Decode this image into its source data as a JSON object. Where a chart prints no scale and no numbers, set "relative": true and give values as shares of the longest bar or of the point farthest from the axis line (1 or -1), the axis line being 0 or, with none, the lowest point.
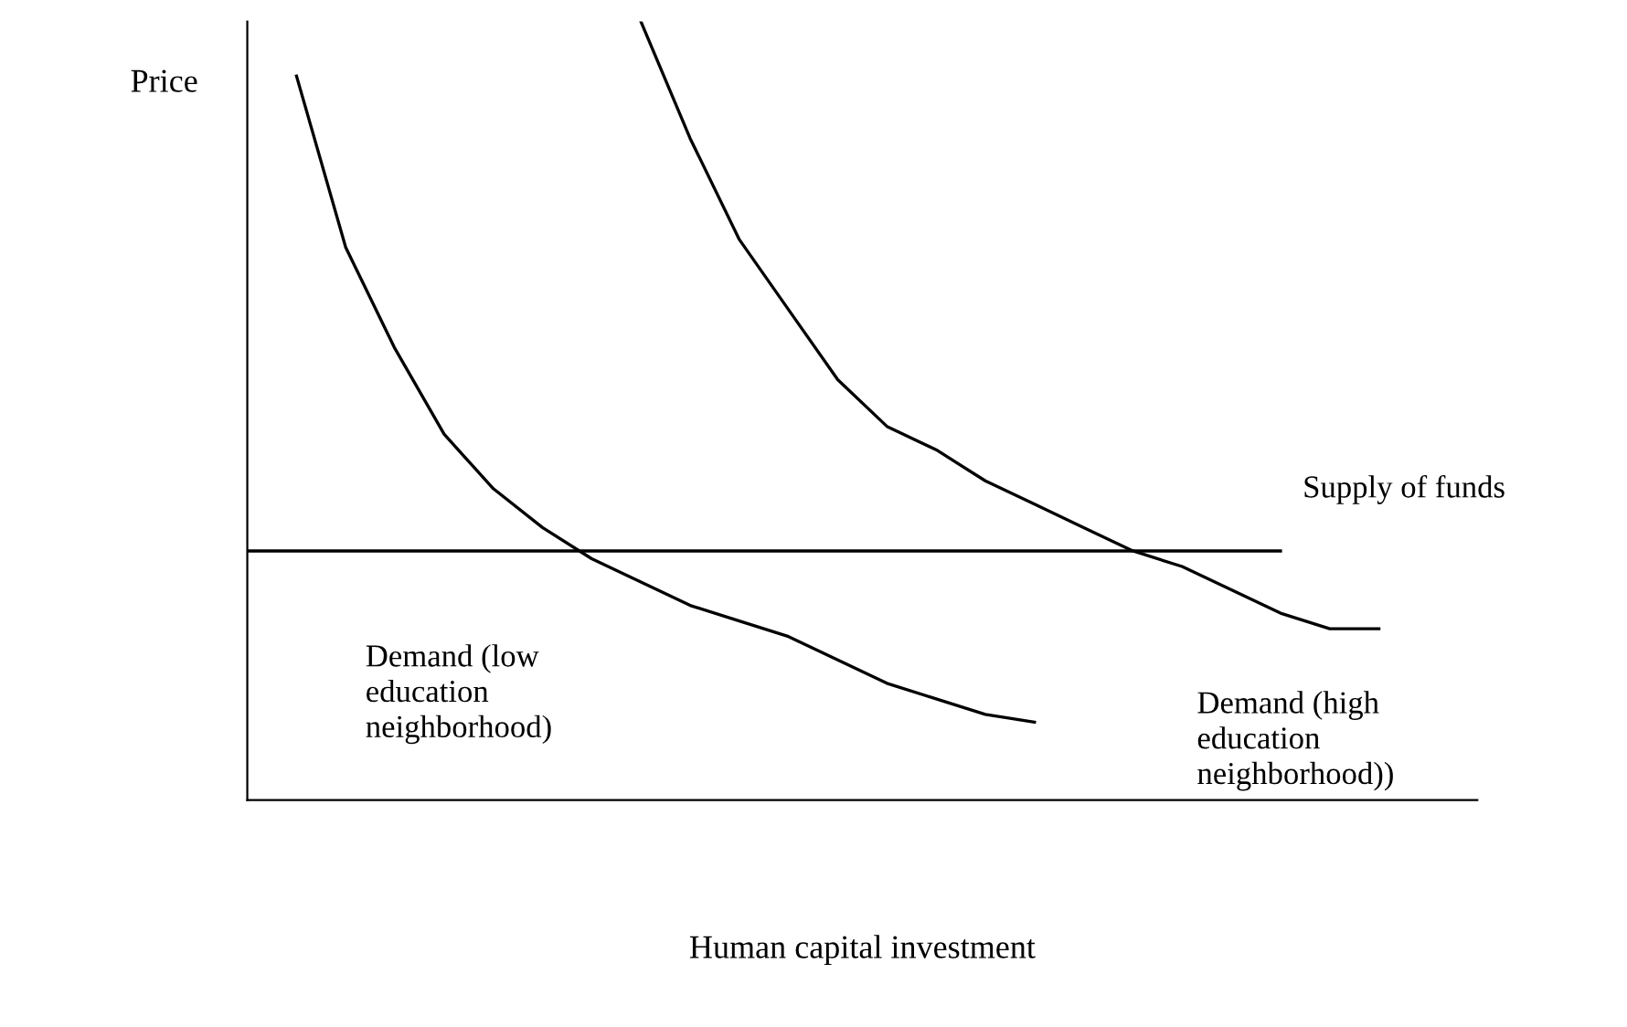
{
  "chart_data": {
    "type": "line",
    "relative": true,
    "annotations": [
      "Human capital investment"
    ],
    "ylabel": "Price",
    "legend": false,
    "marker": "none",
    "line_style": "solid",
    "categories": [
      null,
      null,
      null,
      null,
      null,
      null,
      null,
      null,
      null,
      null,
      null,
      null,
      null,
      null,
      null,
      null,
      null,
      null,
      null,
      null,
      null,
      null,
      null,
      null,
      null,
      null
    ],
    "series": [
      {
        "name": "Demand (low\neducation\nneighborhood)",
        "color": "#000000",
        "values": [
          null,
          0.93,
          0.71,
          0.58,
          0.47,
          0.4,
          0.35,
          0.31,
          0.28,
          0.25,
          0.23,
          0.21,
          0.18,
          0.15,
          0.13,
          0.11,
          0.1,
          null,
          null,
          null,
          null,
          null,
          null,
          null,
          null,
          null
        ]
      },
      {
        "name": "Demand (high\neducation\nneighborhood))",
        "color": "#000000",
        "values": [
          null,
          null,
          null,
          null,
          null,
          null,
          null,
          null,
          1,
          0.85,
          0.72,
          0.63,
          0.54,
          0.48,
          0.45,
          0.41,
          0.38,
          0.35,
          0.32,
          0.3,
          0.27,
          0.24,
          0.22,
          0.22,
          null,
          null
        ]
      },
      {
        "name": "Supply of funds",
        "color": "#000000",
        "values": [
          0.32,
          0.32,
          0.32,
          0.32,
          0.32,
          0.32,
          0.32,
          0.32,
          0.32,
          0.32,
          0.32,
          0.32,
          0.32,
          0.32,
          0.32,
          0.32,
          0.32,
          0.32,
          0.32,
          0.32,
          0.32,
          0.32,
          null,
          null,
          null,
          null
        ]
      }
    ]
  }
}
